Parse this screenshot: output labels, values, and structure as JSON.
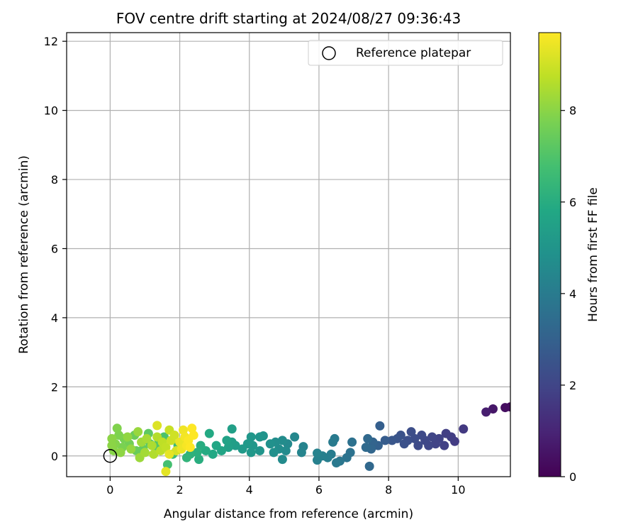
{
  "chart_data": {
    "type": "scatter",
    "title": "FOV centre drift starting at 2024/08/27 09:36:43",
    "xlabel": "Angular distance from reference (arcmin)",
    "ylabel": "Rotation from reference (arcmin)",
    "xlim": [
      -1.25,
      11.5
    ],
    "ylim": [
      -0.6,
      12.25
    ],
    "xticks": [
      0,
      2,
      4,
      6,
      8,
      10
    ],
    "yticks": [
      0,
      2,
      4,
      6,
      8,
      10,
      12
    ],
    "grid": true,
    "legend": {
      "placement": "upper right",
      "entries": [
        "Reference platepar"
      ]
    },
    "reference_point": {
      "x": 0,
      "y": 0,
      "marker": "open-circle",
      "color": "#000000"
    },
    "colorbar": {
      "label": "Hours from first FF file",
      "colormap": "viridis",
      "range": [
        0,
        9.7
      ],
      "ticks": [
        0,
        2,
        4,
        6,
        8
      ]
    },
    "points": [
      {
        "x": 11.5,
        "y": 1.42,
        "c": 0.2
      },
      {
        "x": 11.35,
        "y": 1.4,
        "c": 0.35
      },
      {
        "x": 11.0,
        "y": 1.36,
        "c": 0.6
      },
      {
        "x": 10.8,
        "y": 1.27,
        "c": 0.8
      },
      {
        "x": 10.15,
        "y": 0.78,
        "c": 1.6
      },
      {
        "x": 9.9,
        "y": 0.42,
        "c": 1.7
      },
      {
        "x": 9.8,
        "y": 0.55,
        "c": 1.75
      },
      {
        "x": 9.65,
        "y": 0.65,
        "c": 1.8
      },
      {
        "x": 9.6,
        "y": 0.3,
        "c": 1.85
      },
      {
        "x": 9.45,
        "y": 0.5,
        "c": 1.9
      },
      {
        "x": 9.35,
        "y": 0.35,
        "c": 1.95
      },
      {
        "x": 9.25,
        "y": 0.55,
        "c": 2.0
      },
      {
        "x": 9.15,
        "y": 0.3,
        "c": 2.05
      },
      {
        "x": 9.05,
        "y": 0.45,
        "c": 2.1
      },
      {
        "x": 8.95,
        "y": 0.6,
        "c": 2.15
      },
      {
        "x": 8.85,
        "y": 0.3,
        "c": 2.2
      },
      {
        "x": 8.75,
        "y": 0.5,
        "c": 2.25
      },
      {
        "x": 8.65,
        "y": 0.7,
        "c": 2.3
      },
      {
        "x": 8.55,
        "y": 0.45,
        "c": 2.35
      },
      {
        "x": 8.45,
        "y": 0.35,
        "c": 2.4
      },
      {
        "x": 8.35,
        "y": 0.6,
        "c": 2.45
      },
      {
        "x": 8.25,
        "y": 0.5,
        "c": 2.5
      },
      {
        "x": 8.1,
        "y": 0.45,
        "c": 2.6
      },
      {
        "x": 7.9,
        "y": 0.45,
        "c": 2.8
      },
      {
        "x": 7.75,
        "y": 0.87,
        "c": 2.9
      },
      {
        "x": 7.7,
        "y": 0.3,
        "c": 3.0
      },
      {
        "x": 7.55,
        "y": 0.4,
        "c": 3.1
      },
      {
        "x": 7.5,
        "y": 0.2,
        "c": 3.2
      },
      {
        "x": 7.45,
        "y": -0.3,
        "c": 3.25
      },
      {
        "x": 7.4,
        "y": 0.5,
        "c": 3.3
      },
      {
        "x": 7.35,
        "y": 0.25,
        "c": 3.35
      },
      {
        "x": 6.95,
        "y": 0.4,
        "c": 3.6
      },
      {
        "x": 6.9,
        "y": 0.1,
        "c": 3.65
      },
      {
        "x": 6.8,
        "y": -0.05,
        "c": 3.7
      },
      {
        "x": 6.6,
        "y": -0.15,
        "c": 3.8
      },
      {
        "x": 6.5,
        "y": -0.2,
        "c": 3.9
      },
      {
        "x": 6.45,
        "y": 0.5,
        "c": 3.95
      },
      {
        "x": 6.4,
        "y": 0.4,
        "c": 4.0
      },
      {
        "x": 6.35,
        "y": 0.05,
        "c": 4.05
      },
      {
        "x": 6.25,
        "y": -0.05,
        "c": 4.1
      },
      {
        "x": 6.1,
        "y": 0.0,
        "c": 4.15
      },
      {
        "x": 5.95,
        "y": -0.12,
        "c": 4.2
      },
      {
        "x": 5.95,
        "y": 0.08,
        "c": 4.25
      },
      {
        "x": 5.55,
        "y": 0.27,
        "c": 4.3
      },
      {
        "x": 5.5,
        "y": 0.1,
        "c": 4.35
      },
      {
        "x": 5.3,
        "y": 0.55,
        "c": 4.45
      },
      {
        "x": 5.1,
        "y": 0.35,
        "c": 4.55
      },
      {
        "x": 5.05,
        "y": 0.15,
        "c": 4.6
      },
      {
        "x": 4.95,
        "y": -0.1,
        "c": 4.62
      },
      {
        "x": 4.95,
        "y": 0.45,
        "c": 4.65
      },
      {
        "x": 4.85,
        "y": 0.2,
        "c": 4.7
      },
      {
        "x": 4.75,
        "y": 0.4,
        "c": 4.75
      },
      {
        "x": 4.7,
        "y": 0.1,
        "c": 4.8
      },
      {
        "x": 4.6,
        "y": 0.35,
        "c": 4.85
      },
      {
        "x": 4.4,
        "y": 0.58,
        "c": 4.95
      },
      {
        "x": 4.3,
        "y": 0.55,
        "c": 5.0
      },
      {
        "x": 4.3,
        "y": 0.15,
        "c": 5.0
      },
      {
        "x": 4.1,
        "y": 0.3,
        "c": 5.1
      },
      {
        "x": 4.05,
        "y": 0.55,
        "c": 5.1
      },
      {
        "x": 4.05,
        "y": 0.1,
        "c": 5.15
      },
      {
        "x": 3.95,
        "y": 0.35,
        "c": 5.2
      },
      {
        "x": 3.8,
        "y": 0.2,
        "c": 5.25
      },
      {
        "x": 3.6,
        "y": 0.3,
        "c": 5.35
      },
      {
        "x": 3.5,
        "y": 0.4,
        "c": 5.4
      },
      {
        "x": 3.5,
        "y": 0.78,
        "c": 5.45
      },
      {
        "x": 3.4,
        "y": 0.25,
        "c": 5.5
      },
      {
        "x": 3.35,
        "y": 0.45,
        "c": 5.55
      },
      {
        "x": 3.2,
        "y": 0.15,
        "c": 5.65
      },
      {
        "x": 3.05,
        "y": 0.3,
        "c": 5.75
      },
      {
        "x": 2.95,
        "y": 0.05,
        "c": 5.8
      },
      {
        "x": 2.85,
        "y": 0.65,
        "c": 5.85
      },
      {
        "x": 2.75,
        "y": 0.15,
        "c": 5.9
      },
      {
        "x": 2.6,
        "y": 0.3,
        "c": 6.0
      },
      {
        "x": 2.55,
        "y": -0.1,
        "c": 6.05
      },
      {
        "x": 2.5,
        "y": 0.1,
        "c": 6.1
      },
      {
        "x": 2.3,
        "y": 0.05,
        "c": 6.2
      },
      {
        "x": 2.2,
        "y": -0.05,
        "c": 6.3
      },
      {
        "x": 1.95,
        "y": 0.3,
        "c": 6.5
      },
      {
        "x": 1.8,
        "y": 0.05,
        "c": 6.65
      },
      {
        "x": 1.65,
        "y": -0.25,
        "c": 6.8
      },
      {
        "x": 1.55,
        "y": 0.55,
        "c": 6.9
      },
      {
        "x": 1.4,
        "y": 0.45,
        "c": 7.0
      },
      {
        "x": 1.3,
        "y": 0.25,
        "c": 7.1
      },
      {
        "x": 1.15,
        "y": 0.35,
        "c": 7.2
      },
      {
        "x": 1.1,
        "y": 0.65,
        "c": 7.25
      },
      {
        "x": 0.95,
        "y": 0.2,
        "c": 7.35
      },
      {
        "x": 0.75,
        "y": 0.15,
        "c": 7.45
      },
      {
        "x": 0.7,
        "y": 0.6,
        "c": 7.5
      },
      {
        "x": 0.55,
        "y": 0.35,
        "c": 7.6
      },
      {
        "x": 0.4,
        "y": 0.5,
        "c": 7.7
      },
      {
        "x": 0.35,
        "y": 0.25,
        "c": 7.75
      },
      {
        "x": 0.25,
        "y": 0.6,
        "c": 7.8
      },
      {
        "x": 0.2,
        "y": 0.8,
        "c": 7.85
      },
      {
        "x": 0.15,
        "y": 0.35,
        "c": 7.9
      },
      {
        "x": 0.1,
        "y": 0.15,
        "c": 7.95
      },
      {
        "x": 0.05,
        "y": 0.5,
        "c": 8.0
      },
      {
        "x": 0.05,
        "y": 0.3,
        "c": 8.0
      },
      {
        "x": 0.3,
        "y": 0.1,
        "c": 8.05
      },
      {
        "x": 0.5,
        "y": 0.55,
        "c": 8.1
      },
      {
        "x": 0.6,
        "y": 0.2,
        "c": 8.15
      },
      {
        "x": 0.8,
        "y": 0.7,
        "c": 8.2
      },
      {
        "x": 0.85,
        "y": -0.05,
        "c": 8.25
      },
      {
        "x": 0.9,
        "y": 0.4,
        "c": 8.3
      },
      {
        "x": 1.0,
        "y": 0.1,
        "c": 8.35
      },
      {
        "x": 1.05,
        "y": 0.5,
        "c": 8.4
      },
      {
        "x": 1.2,
        "y": 0.3,
        "c": 8.5
      },
      {
        "x": 1.25,
        "y": 0.05,
        "c": 8.55
      },
      {
        "x": 1.35,
        "y": 0.55,
        "c": 8.6
      },
      {
        "x": 1.45,
        "y": 0.15,
        "c": 8.7
      },
      {
        "x": 1.5,
        "y": 0.4,
        "c": 8.75
      },
      {
        "x": 1.6,
        "y": 0.25,
        "c": 8.8
      },
      {
        "x": 1.7,
        "y": 0.75,
        "c": 8.9
      },
      {
        "x": 1.75,
        "y": 0.45,
        "c": 8.95
      },
      {
        "x": 1.85,
        "y": 0.6,
        "c": 9.0
      },
      {
        "x": 1.9,
        "y": 0.15,
        "c": 9.1
      },
      {
        "x": 1.35,
        "y": 0.88,
        "c": 9.2
      },
      {
        "x": 1.6,
        "y": -0.45,
        "c": 9.3
      },
      {
        "x": 1.7,
        "y": 0.05,
        "c": 9.35
      },
      {
        "x": 2.0,
        "y": 0.4,
        "c": 9.4
      },
      {
        "x": 2.05,
        "y": 0.2,
        "c": 9.45
      },
      {
        "x": 2.1,
        "y": 0.75,
        "c": 9.5
      },
      {
        "x": 2.15,
        "y": 0.55,
        "c": 9.55
      },
      {
        "x": 2.2,
        "y": 0.3,
        "c": 9.6
      },
      {
        "x": 2.25,
        "y": 0.45,
        "c": 9.65
      },
      {
        "x": 2.3,
        "y": 0.25,
        "c": 9.7
      },
      {
        "x": 2.35,
        "y": 0.8,
        "c": 9.7
      },
      {
        "x": 2.4,
        "y": 0.6,
        "c": 9.7
      }
    ]
  }
}
